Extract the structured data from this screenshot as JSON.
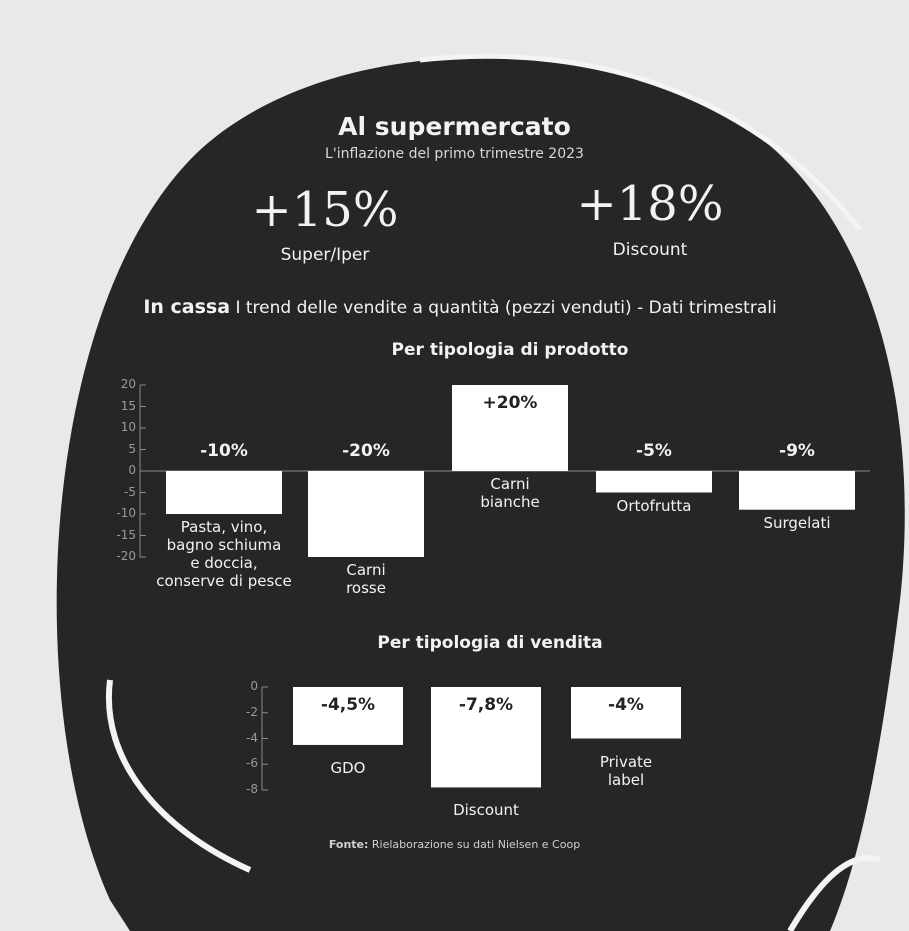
{
  "header": {
    "title": "Al supermercato",
    "subtitle": "L'inflazione del primo trimestre 2023",
    "highlights": [
      {
        "value": "+15%",
        "label": "Super/Iper"
      },
      {
        "value": "+18%",
        "label": "Discount"
      }
    ],
    "section": {
      "label": "In cassa",
      "text": "I trend delle vendite a quantità (pezzi venduti) - Dati trimestrali"
    }
  },
  "chart_data": [
    {
      "type": "bar",
      "title": "Per tipologia di prodotto",
      "categories": [
        "Pasta, vino,\nbagno schiuma\ne doccia,\nconserve di pesce",
        "Carni\nrosse",
        "Carni\nbianche",
        "Ortofrutta",
        "Surgelati"
      ],
      "values": [
        -10,
        -20,
        20,
        -5,
        -9
      ],
      "value_labels": [
        "-10%",
        "-20%",
        "+20%",
        "-5%",
        "-9%"
      ],
      "color": "#ffffff",
      "ylim": [
        -20,
        20
      ],
      "yticks": [
        20,
        15,
        10,
        5,
        0,
        -5,
        -10,
        -15,
        -20
      ]
    },
    {
      "type": "bar",
      "title": "Per tipologia di vendita",
      "categories": [
        "GDO",
        "Discount",
        "Private\nlabel"
      ],
      "values": [
        -4.5,
        -7.8,
        -4
      ],
      "value_labels": [
        "-4,5%",
        "-7,8%",
        "-4%"
      ],
      "color": "#ffffff",
      "ylim": [
        -8,
        0
      ],
      "yticks": [
        0,
        -2,
        -4,
        -6,
        -8
      ]
    }
  ],
  "footer": {
    "label": "Fonte:",
    "text": "Rielaborazione su dati Nielsen e Coop"
  }
}
